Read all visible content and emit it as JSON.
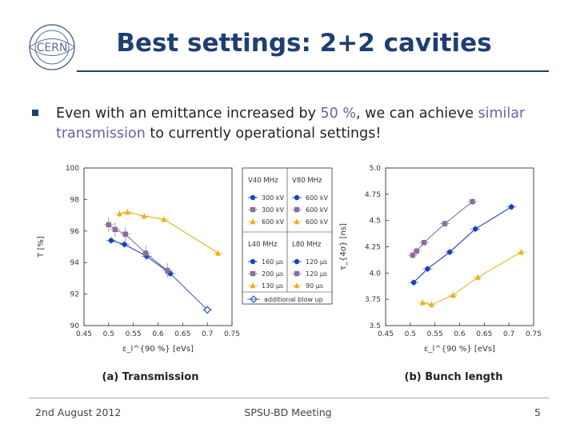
{
  "header": {
    "logo_text": "CERN",
    "title": "Best settings: 2+2 cavities"
  },
  "bullet": {
    "before": "Even with an emittance increased by ",
    "highlight1": "50 %",
    "middle": ", we can achieve ",
    "highlight2": "similar transmission",
    "after": " to currently operational settings!"
  },
  "colors": {
    "title": "#1f3f73",
    "highlight": "#6b5fa8",
    "blue": "#1f3fbf",
    "purple": "#8a6e99",
    "yellow": "#e6b422"
  },
  "chart_data": [
    {
      "type": "line",
      "caption": "(a) Transmission",
      "xlabel": "ε_l^{90 %} [eVs]",
      "ylabel": "T [%]",
      "xlim": [
        0.45,
        0.75
      ],
      "ylim": [
        90,
        100
      ],
      "xticks": [
        "0.45",
        "0.5",
        "0.55",
        "0.6",
        "0.65",
        "0.7",
        "0.75"
      ],
      "yticks": [
        "90",
        "92",
        "94",
        "96",
        "98",
        "100"
      ],
      "series": [
        {
          "name": "blue",
          "color": "#1f3fbf",
          "marker": "circle",
          "points": [
            [
              0.505,
              95.4
            ],
            [
              0.532,
              95.15
            ],
            [
              0.577,
              94.4
            ],
            [
              0.625,
              93.3
            ]
          ]
        },
        {
          "name": "purple",
          "color": "#8a6e99",
          "marker": "square",
          "points": [
            [
              0.5,
              96.4
            ],
            [
              0.513,
              96.1
            ],
            [
              0.534,
              95.8
            ],
            [
              0.575,
              94.6
            ],
            [
              0.619,
              93.5
            ]
          ]
        },
        {
          "name": "yellow",
          "color": "#e6b422",
          "marker": "triangle",
          "points": [
            [
              0.522,
              97.1
            ],
            [
              0.538,
              97.2
            ],
            [
              0.572,
              96.95
            ],
            [
              0.612,
              96.75
            ],
            [
              0.722,
              94.6
            ]
          ]
        },
        {
          "name": "blow-up",
          "color": "#1f3fbf",
          "marker": "open-diamond",
          "points": [
            [
              0.625,
              93.3
            ],
            [
              0.7,
              91.0
            ]
          ]
        }
      ]
    },
    {
      "type": "line",
      "caption": "(b) Bunch length",
      "xlabel": "ε_l^{90 %} [eVs]",
      "ylabel": "τ_{4σ} [ns]",
      "xlim": [
        0.45,
        0.75
      ],
      "ylim": [
        3.5,
        5.0
      ],
      "xticks": [
        "0.45",
        "0.5",
        "0.55",
        "0.6",
        "0.65",
        "0.7",
        "0.75"
      ],
      "yticks": [
        "3.5",
        "3.75",
        "4.0",
        "4.25",
        "4.5",
        "4.75",
        "5.0"
      ],
      "series": [
        {
          "name": "blue",
          "color": "#1f3fbf",
          "marker": "circle",
          "points": [
            [
              0.507,
              3.91
            ],
            [
              0.535,
              4.04
            ],
            [
              0.58,
              4.2
            ],
            [
              0.632,
              4.42
            ],
            [
              0.705,
              4.63
            ]
          ]
        },
        {
          "name": "purple",
          "color": "#8a6e99",
          "marker": "square",
          "points": [
            [
              0.505,
              4.17
            ],
            [
              0.513,
              4.21
            ],
            [
              0.528,
              4.29
            ],
            [
              0.57,
              4.47
            ],
            [
              0.626,
              4.68
            ]
          ]
        },
        {
          "name": "yellow",
          "color": "#e6b422",
          "marker": "triangle",
          "points": [
            [
              0.525,
              3.72
            ],
            [
              0.543,
              3.7
            ],
            [
              0.587,
              3.79
            ],
            [
              0.637,
              3.96
            ],
            [
              0.725,
              4.2
            ]
          ]
        }
      ]
    }
  ],
  "legend": {
    "v40_title": "V40 MHz",
    "v80_title": "V80 MHz",
    "v_rows": [
      [
        "300 kV",
        "600 kV"
      ],
      [
        "300 kV",
        "600 kV"
      ],
      [
        "600 kV",
        "600 kV"
      ]
    ],
    "l40_title": "L40 MHz",
    "l80_title": "L80 MHz",
    "l_rows": [
      [
        "160 μs",
        "120 μs"
      ],
      [
        "200 μs",
        "120 μs"
      ],
      [
        "130 μs",
        "90 μs"
      ]
    ],
    "blowup_label": "additional blow up"
  },
  "footer": {
    "date": "2nd August 2012",
    "meeting": "SPSU-BD Meeting",
    "page": "5"
  }
}
